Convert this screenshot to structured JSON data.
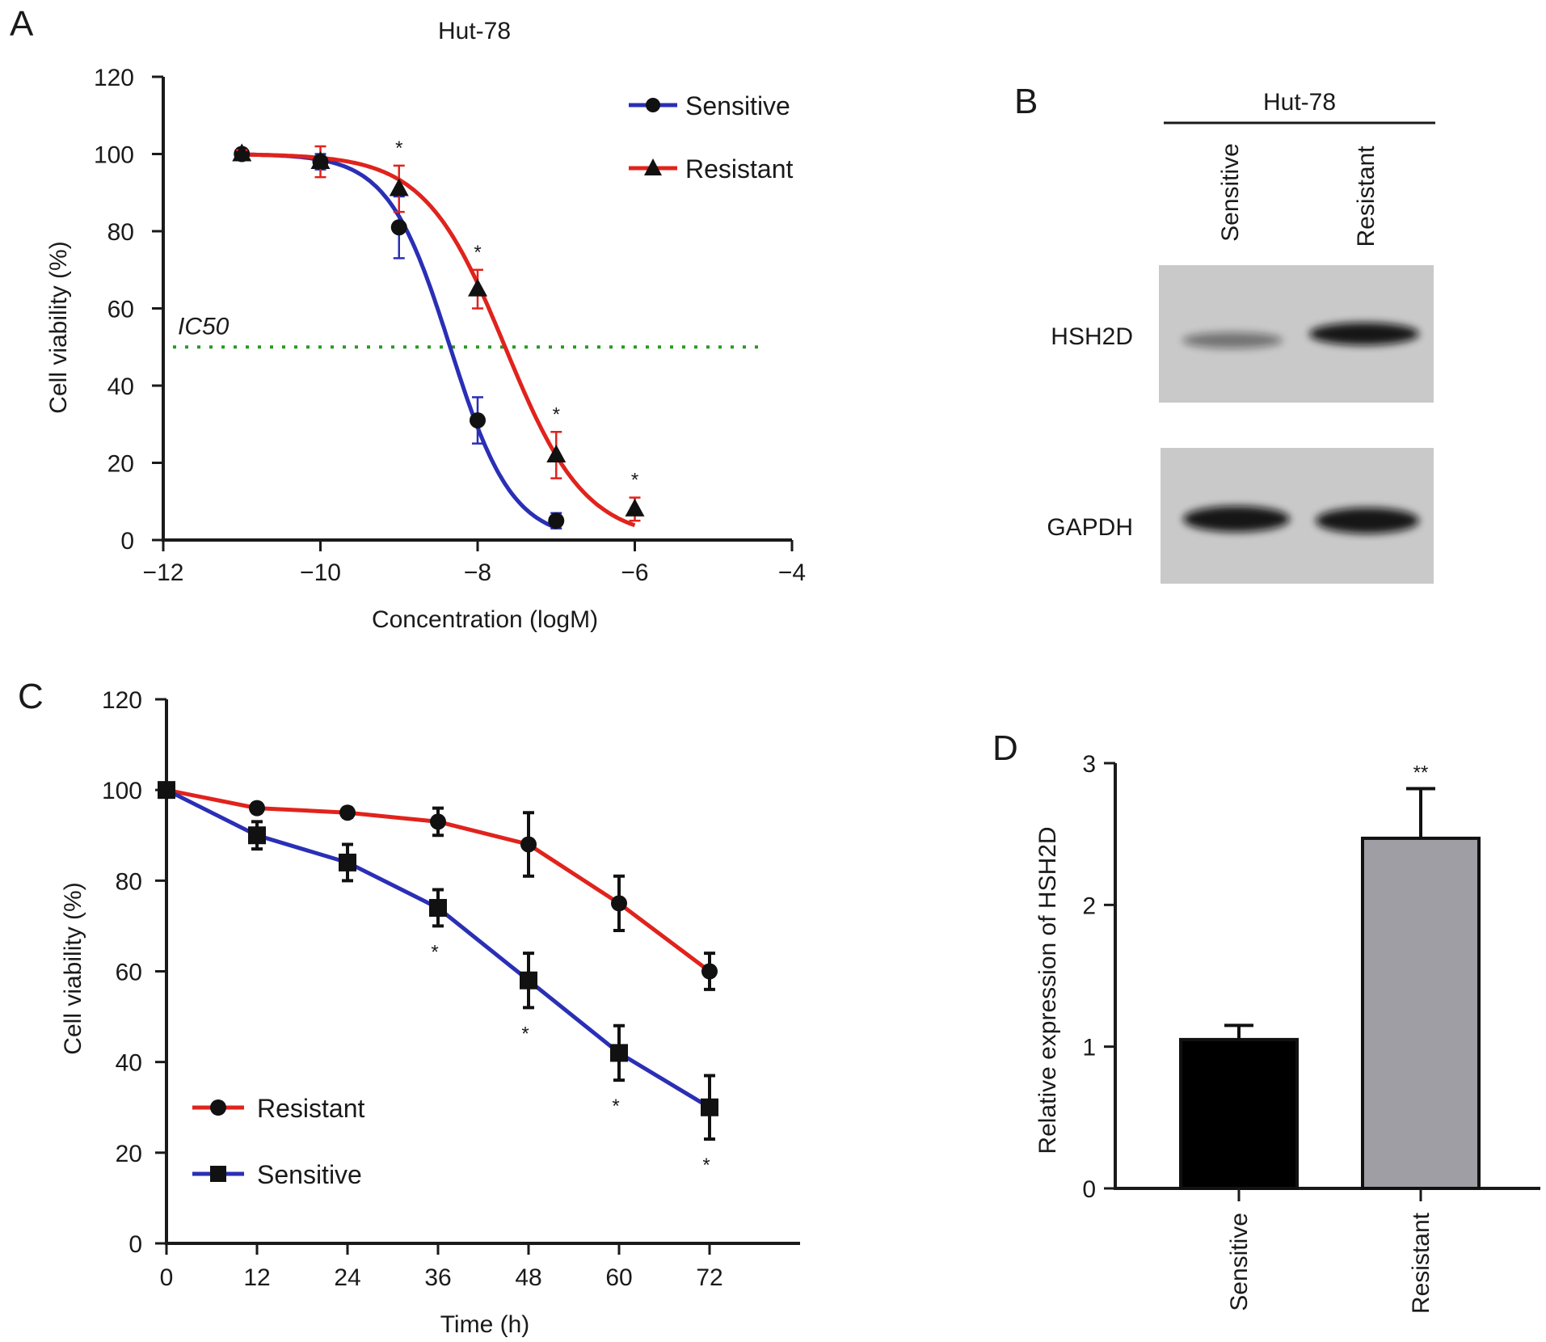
{
  "panels": {
    "a": "A",
    "b": "B",
    "c": "C",
    "d": "D"
  },
  "colors": {
    "sensitive_line": "#2a2fb5",
    "resistant_line": "#e0231c",
    "ic50_line": "#2a9a22",
    "marker": "#111111",
    "bar_sensitive": "#000000",
    "bar_resistant": "#9e9ea4",
    "blot_background": "#c9c9c9"
  },
  "chart_data": [
    {
      "id": "A",
      "type": "line",
      "title": "Hut-78",
      "xlabel": "Concentration (logM)",
      "ylabel": "Cell viability (%)",
      "xlim": [
        -12,
        -4
      ],
      "ylim": [
        0,
        120
      ],
      "xticks": [
        "−12",
        "−10",
        "−8",
        "−6",
        "−4"
      ],
      "yticks": [
        "0",
        "20",
        "40",
        "60",
        "80",
        "100",
        "120"
      ],
      "legend_position": "top-right",
      "reference_line": {
        "label": "IC50",
        "y": 50
      },
      "series": [
        {
          "name": "Sensitive",
          "marker": "circle",
          "color_key": "sensitive_line",
          "x": [
            -11,
            -10,
            -9,
            -8,
            -7
          ],
          "y": [
            100,
            98,
            81,
            31,
            5
          ],
          "err": [
            1,
            2,
            8,
            6,
            2
          ],
          "fit": {
            "logIC50": -8.35,
            "hill": 1.1
          }
        },
        {
          "name": "Resistant",
          "marker": "triangle",
          "color_key": "resistant_line",
          "x": [
            -11,
            -10,
            -9,
            -8,
            -7,
            -6
          ],
          "y": [
            100,
            98,
            91,
            65,
            22,
            8
          ],
          "err": [
            1,
            4,
            6,
            5,
            6,
            3
          ],
          "fit": {
            "logIC50": -7.65,
            "hill": 0.85
          }
        }
      ],
      "annotations": [
        {
          "text": "*",
          "x": -9
        },
        {
          "text": "*",
          "x": -8
        },
        {
          "text": "*",
          "x": -7
        },
        {
          "text": "*",
          "x": -6
        }
      ]
    },
    {
      "id": "C",
      "type": "line",
      "xlabel": "Time (h)",
      "ylabel": "Cell viability (%)",
      "xlim": [
        0,
        84
      ],
      "ylim": [
        0,
        120
      ],
      "x": [
        0,
        12,
        24,
        36,
        48,
        60,
        72
      ],
      "xticks": [
        "0",
        "12",
        "24",
        "36",
        "48",
        "60",
        "72"
      ],
      "yticks": [
        "0",
        "20",
        "40",
        "60",
        "80",
        "100",
        "120"
      ],
      "legend_position": "bottom-left",
      "series": [
        {
          "name": "Resistant",
          "marker": "circle",
          "color_key": "resistant_line",
          "y": [
            100,
            96,
            95,
            93,
            88,
            75,
            60
          ],
          "err": [
            1,
            1,
            1,
            3,
            7,
            6,
            4
          ]
        },
        {
          "name": "Sensitive",
          "marker": "square",
          "color_key": "sensitive_line",
          "y": [
            100,
            90,
            84,
            74,
            58,
            42,
            30
          ],
          "err": [
            1,
            3,
            4,
            4,
            6,
            6,
            7
          ]
        }
      ],
      "annotations": [
        {
          "text": "*",
          "x": 36
        },
        {
          "text": "*",
          "x": 48
        },
        {
          "text": "*",
          "x": 60
        },
        {
          "text": "*",
          "x": 72
        }
      ]
    },
    {
      "id": "D",
      "type": "bar",
      "ylabel": "Relative expression of HSH2D",
      "ylim": [
        0,
        3
      ],
      "yticks": [
        "0",
        "1",
        "2",
        "3"
      ],
      "categories": [
        "Sensitive",
        "Resistant"
      ],
      "values": [
        1.05,
        2.47
      ],
      "err": [
        0.1,
        0.35
      ],
      "bar_color_keys": [
        "bar_sensitive",
        "bar_resistant"
      ],
      "annotations": [
        {
          "text": "**",
          "category": "Resistant"
        }
      ]
    }
  ],
  "blot": {
    "title": "Hut-78",
    "lanes": [
      "Sensitive",
      "Resistant"
    ],
    "rows": [
      {
        "label": "HSH2D",
        "intensity": [
          0.45,
          0.95
        ]
      },
      {
        "label": "GAPDH",
        "intensity": [
          0.95,
          0.95
        ]
      }
    ]
  }
}
